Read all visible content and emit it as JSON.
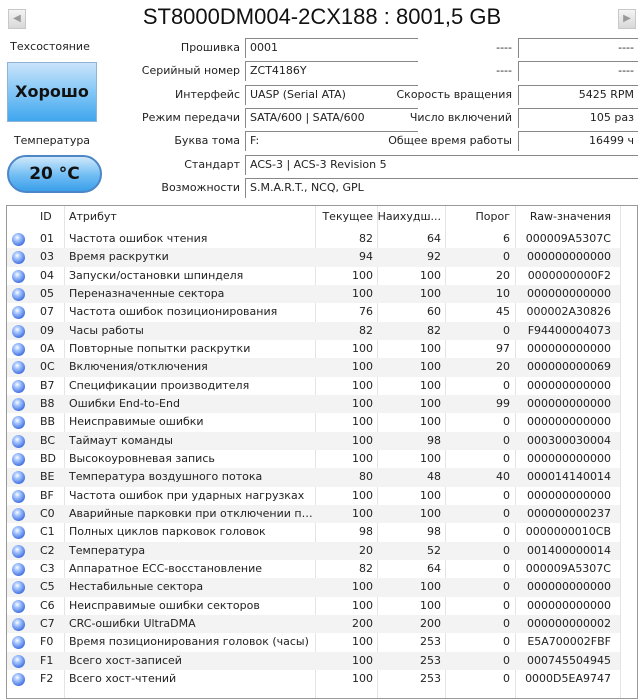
{
  "title": "ST8000DM004-2CX188 : 8001,5 GB",
  "nav": {
    "prev_icon": "triangle-left-icon",
    "next_icon": "triangle-right-icon"
  },
  "health": {
    "label": "Техсостояние",
    "value": "Хорошо",
    "color": "#5cb6f2"
  },
  "temperature": {
    "label": "Температура",
    "value": "20 °C"
  },
  "info": {
    "firmware": {
      "label": "Прошивка",
      "value": "0001"
    },
    "serial": {
      "label": "Серийный номер",
      "value": "ZCT4186Y"
    },
    "interface": {
      "label": "Интерфейс",
      "value": "UASP (Serial ATA)"
    },
    "transfer": {
      "label": "Режим передачи",
      "value": "SATA/600 | SATA/600"
    },
    "drive_letter": {
      "label": "Буква тома",
      "value": "F:"
    },
    "standard": {
      "label": "Стандарт",
      "value": "ACS-3 | ACS-3 Revision 5"
    },
    "features": {
      "label": "Возможности",
      "value": "S.M.A.R.T., NCQ, GPL"
    },
    "r1": {
      "label": "----",
      "value": "----"
    },
    "r2": {
      "label": "----",
      "value": "----"
    },
    "rotation": {
      "label": "Скорость вращения",
      "value": "5425 RPM"
    },
    "power_count": {
      "label": "Число включений",
      "value": "105 раз"
    },
    "power_hours": {
      "label": "Общее время работы",
      "value": "16499 ч"
    }
  },
  "table": {
    "headers": {
      "id": "ID",
      "attr": "Атрибут",
      "cur": "Текущее",
      "worst": "Наихудш...",
      "thr": "Порог",
      "raw": "Raw-значения"
    },
    "rows": [
      [
        "01",
        "Частота ошибок чтения",
        "82",
        "64",
        "6",
        "000009A5307C"
      ],
      [
        "03",
        "Время раскрутки",
        "94",
        "92",
        "0",
        "000000000000"
      ],
      [
        "04",
        "Запуски/остановки шпинделя",
        "100",
        "100",
        "20",
        "0000000000F2"
      ],
      [
        "05",
        "Переназначенные сектора",
        "100",
        "100",
        "10",
        "000000000000"
      ],
      [
        "07",
        "Частота ошибок позиционирования",
        "76",
        "60",
        "45",
        "000002A30826"
      ],
      [
        "09",
        "Часы работы",
        "82",
        "82",
        "0",
        "F94400004073"
      ],
      [
        "0A",
        "Повторные попытки раскрутки",
        "100",
        "100",
        "97",
        "000000000000"
      ],
      [
        "0C",
        "Включения/отключения",
        "100",
        "100",
        "20",
        "000000000069"
      ],
      [
        "B7",
        "Спецификации производителя",
        "100",
        "100",
        "0",
        "000000000000"
      ],
      [
        "B8",
        "Ошибки End-to-End",
        "100",
        "100",
        "99",
        "000000000000"
      ],
      [
        "BB",
        "Неисправимые ошибки",
        "100",
        "100",
        "0",
        "000000000000"
      ],
      [
        "BC",
        "Таймаут команды",
        "100",
        "98",
        "0",
        "000300030004"
      ],
      [
        "BD",
        "Высокоуровневая запись",
        "100",
        "100",
        "0",
        "000000000000"
      ],
      [
        "BE",
        "Температура воздушного потока",
        "80",
        "48",
        "40",
        "000014140014"
      ],
      [
        "BF",
        "Частота ошибок при ударных нагрузках",
        "100",
        "100",
        "0",
        "000000000000"
      ],
      [
        "C0",
        "Аварийные парковки при отключении пи...",
        "100",
        "100",
        "0",
        "000000000237"
      ],
      [
        "C1",
        "Полных циклов парковок головок",
        "98",
        "98",
        "0",
        "0000000010CB"
      ],
      [
        "C2",
        "Температура",
        "20",
        "52",
        "0",
        "001400000014"
      ],
      [
        "C3",
        "Аппаратное ECC-восстановление",
        "82",
        "64",
        "0",
        "000009A5307C"
      ],
      [
        "C5",
        "Нестабильные сектора",
        "100",
        "100",
        "0",
        "000000000000"
      ],
      [
        "C6",
        "Неисправимые ошибки секторов",
        "100",
        "100",
        "0",
        "000000000000"
      ],
      [
        "C7",
        "CRC-ошибки UltraDMA",
        "200",
        "200",
        "0",
        "000000000002"
      ],
      [
        "F0",
        "Время позиционирования головок (часы)",
        "100",
        "253",
        "0",
        "E5A700002FBF"
      ],
      [
        "F1",
        "Всего хост-записей",
        "100",
        "253",
        "0",
        "000745504945"
      ],
      [
        "F2",
        "Всего хост-чтений",
        "100",
        "253",
        "0",
        "0000D5EA9747"
      ]
    ],
    "status_icon": "blue-circle-icon"
  }
}
